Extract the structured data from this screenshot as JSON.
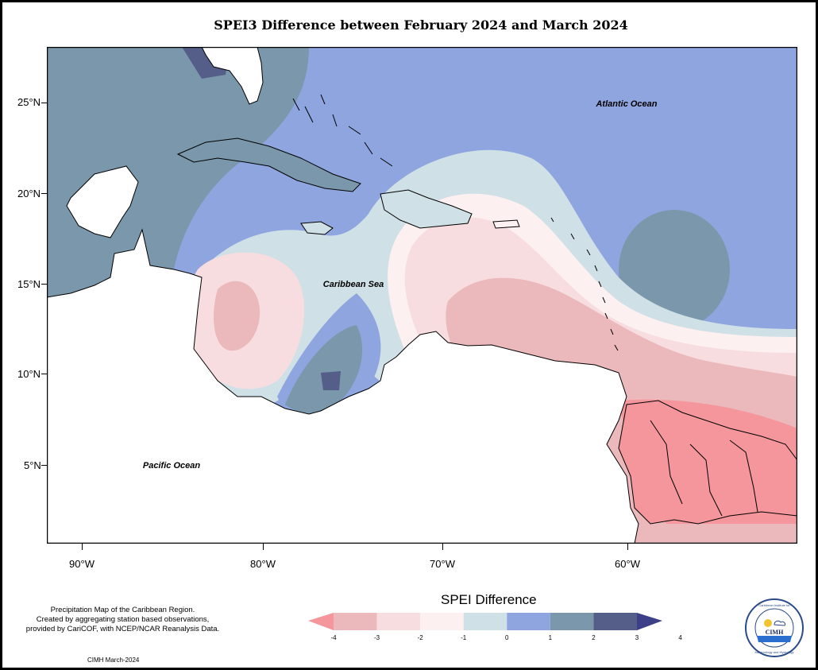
{
  "title": "SPEI3 Difference between February 2024 and March 2024",
  "map": {
    "lat_labels": [
      "25°N",
      "20°N",
      "15°N",
      "10°N",
      "5°N"
    ],
    "lon_labels": [
      "90°W",
      "80°W",
      "70°W",
      "60°W"
    ],
    "regions": {
      "atlantic": "Atlantic Ocean",
      "caribbean": "Caribbean Sea",
      "pacific": "Pacific Ocean"
    }
  },
  "note": {
    "line1": "Precipitation Map of the Caribbean Region.",
    "line2": "Created by aggregating station based observations,",
    "line3": "provided by CariCOF, with NCEP/NCAR Reanalysis Data."
  },
  "credit": "CIMH March-2024",
  "legend": {
    "title": "SPEI Difference",
    "labels": [
      "-4",
      "-3",
      "-2",
      "-1",
      "0",
      "1",
      "2",
      "3",
      "4"
    ],
    "colors": [
      "#f4969b",
      "#ebb9bc",
      "#f7dde0",
      "#fdf0f0",
      "#cfe0e6",
      "#8fa5df",
      "#7a97ab",
      "#545e89",
      "#3d3f88"
    ]
  },
  "logo": {
    "name": "CIMH",
    "ring_top": "Caribbean Institute for",
    "ring_bottom": "Meteorology and Hydrology"
  }
}
